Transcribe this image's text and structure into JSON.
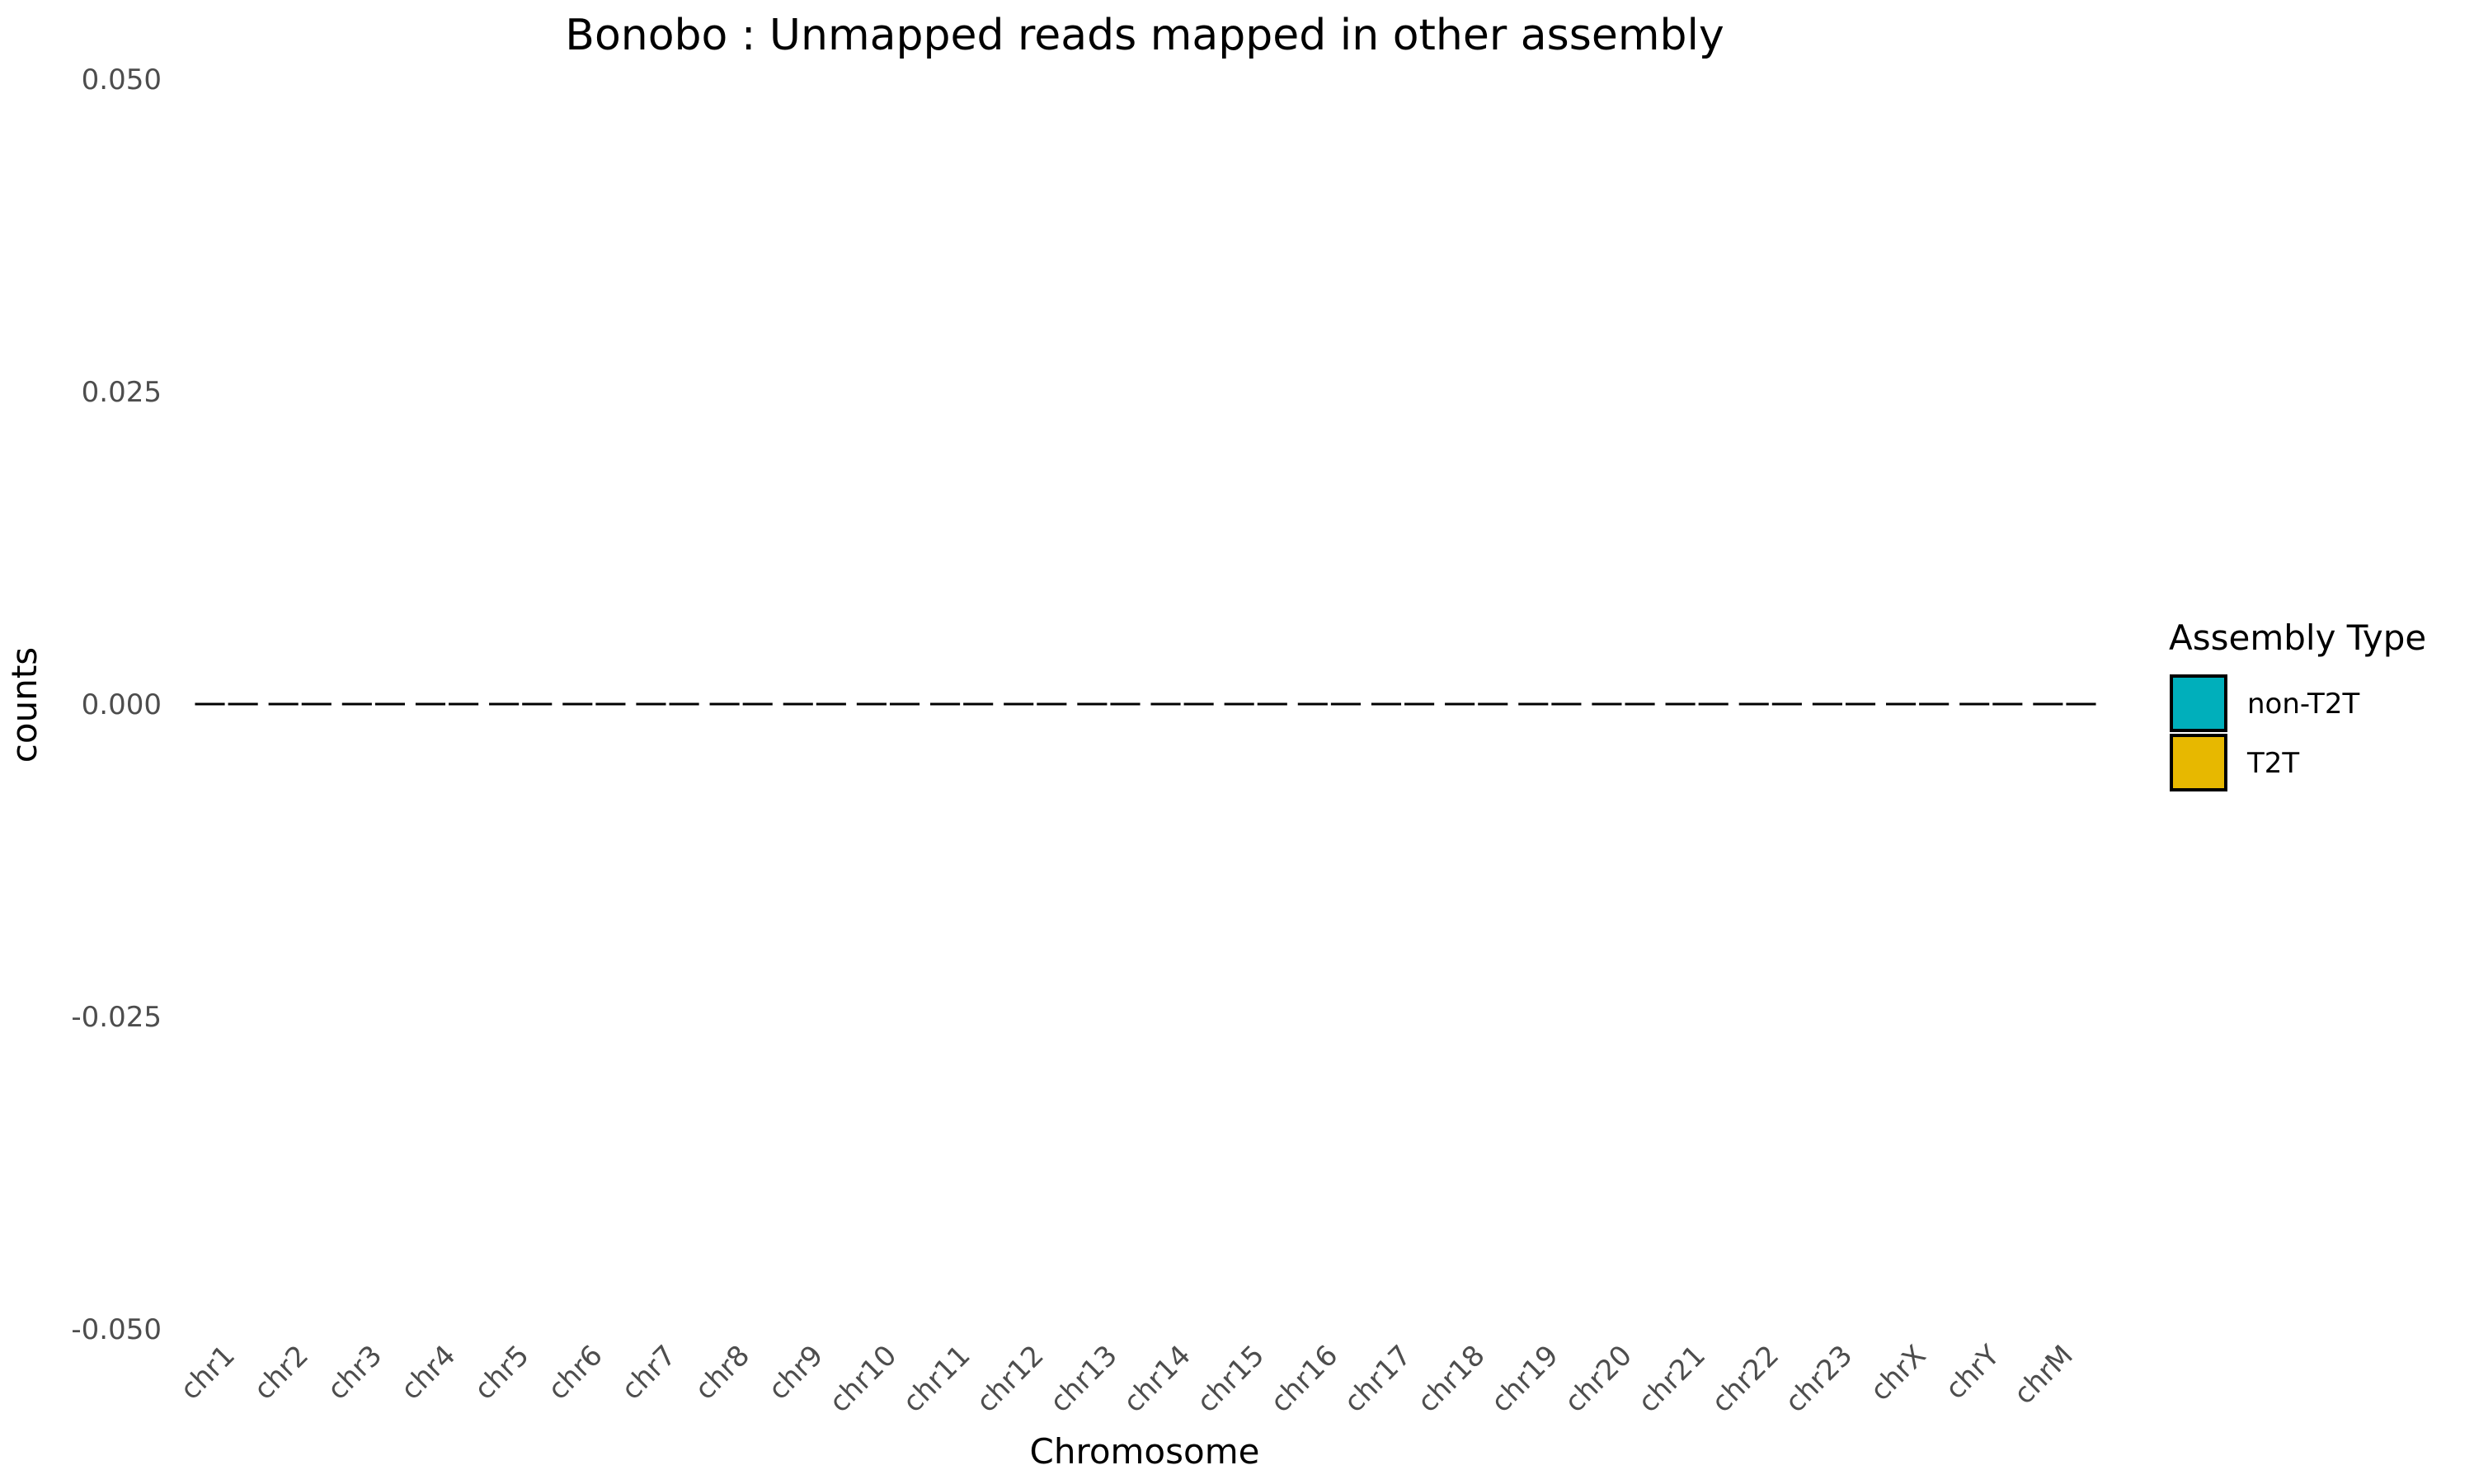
{
  "chart_data": {
    "type": "bar",
    "title": "Bonobo : Unmapped reads mapped in other assembly",
    "xlabel": "Chromosome",
    "ylabel": "counts",
    "categories": [
      "chr1",
      "chr2",
      "chr3",
      "chr4",
      "chr5",
      "chr6",
      "chr7",
      "chr8",
      "chr9",
      "chr10",
      "chr11",
      "chr12",
      "chr13",
      "chr14",
      "chr15",
      "chr16",
      "chr17",
      "chr18",
      "chr19",
      "chr20",
      "chr21",
      "chr22",
      "chr23",
      "chrX",
      "chrY",
      "chrM"
    ],
    "series": [
      {
        "name": "non-T2T",
        "color": "#00AFBB",
        "values": [
          0,
          0,
          0,
          0,
          0,
          0,
          0,
          0,
          0,
          0,
          0,
          0,
          0,
          0,
          0,
          0,
          0,
          0,
          0,
          0,
          0,
          0,
          0,
          0,
          0,
          0
        ]
      },
      {
        "name": "T2T",
        "color": "#E7B800",
        "values": [
          0,
          0,
          0,
          0,
          0,
          0,
          0,
          0,
          0,
          0,
          0,
          0,
          0,
          0,
          0,
          0,
          0,
          0,
          0,
          0,
          0,
          0,
          0,
          0,
          0,
          0
        ]
      }
    ],
    "ylim": [
      -0.05,
      0.05
    ],
    "y_ticks": [
      "0.050",
      "0.025",
      "0.000",
      "-0.025",
      "-0.050"
    ],
    "y_tick_values": [
      0.05,
      0.025,
      0,
      -0.025,
      -0.05
    ],
    "grid": false,
    "legend": {
      "title": "Assembly Type",
      "position": "right"
    }
  }
}
